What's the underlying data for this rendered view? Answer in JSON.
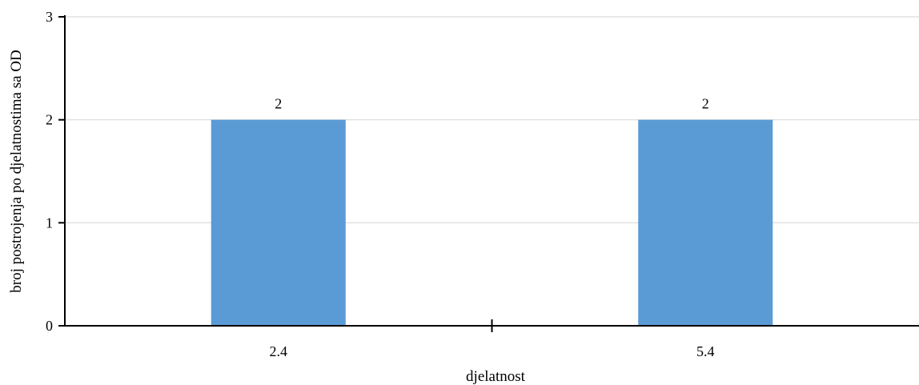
{
  "chart_data": {
    "type": "bar",
    "title": "",
    "categories": [
      "2.4",
      "5.4"
    ],
    "series": [
      {
        "values": [
          2,
          2
        ]
      }
    ],
    "data_labels": [
      "2",
      "2"
    ],
    "xlabel": "djelatnost",
    "ylabel": "broj postrojenja po djelatnostima  sa OD",
    "ylim": [
      0,
      3
    ],
    "yticks": [
      0,
      1,
      2,
      3
    ],
    "ytick_labels": [
      "0",
      "1",
      "2",
      "3"
    ],
    "grid": true,
    "legend": "none",
    "bar_color": "#5B9BD5",
    "grid_color": "#D9D9D9",
    "axis_color": "#000000"
  }
}
